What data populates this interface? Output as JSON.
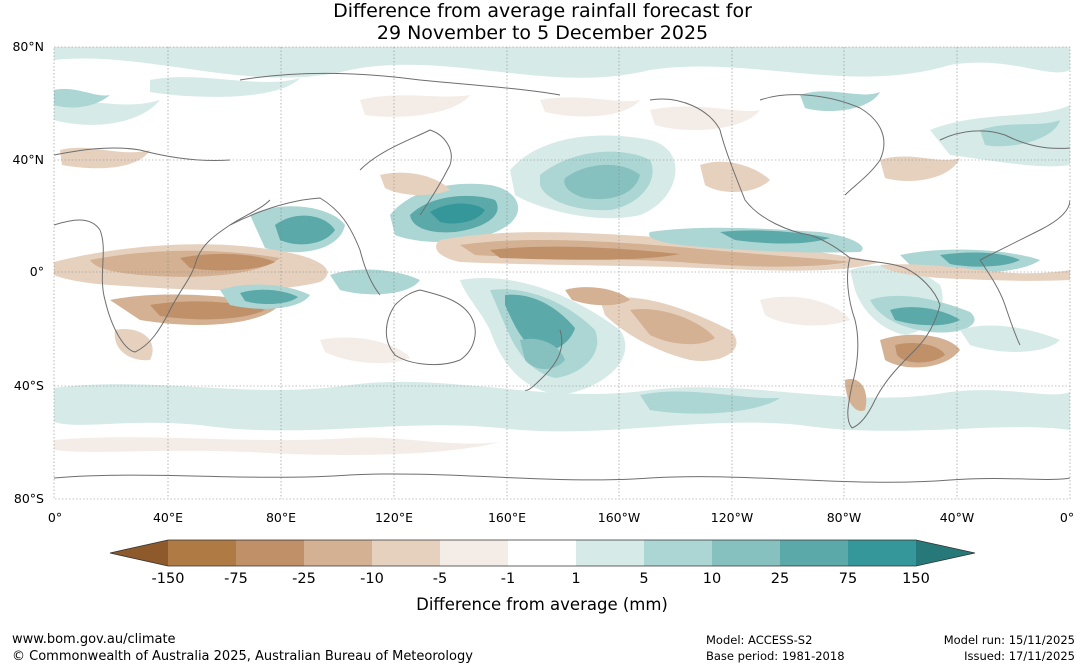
{
  "title": {
    "line1": "Difference from average rainfall forecast for",
    "line2": "29 November to 5 December 2025"
  },
  "map": {
    "lat_labels": [
      "80°N",
      "40°N",
      "0°",
      "40°S",
      "80°S"
    ],
    "lon_labels": [
      "0°",
      "40°E",
      "80°E",
      "120°E",
      "160°E",
      "160°W",
      "120°W",
      "80°W",
      "40°W",
      "0°"
    ]
  },
  "legend": {
    "colors": [
      "#8f5a2b",
      "#b07a44",
      "#c09069",
      "#d3b192",
      "#e6d1bf",
      "#f4ece6",
      "#ffffff",
      "#d6eae8",
      "#abd6d4",
      "#86c0bf",
      "#5ba9a9",
      "#35979a",
      "#267978"
    ],
    "tick_labels": [
      "-150",
      "-75",
      "-25",
      "-10",
      "-5",
      "-1",
      "1",
      "5",
      "10",
      "25",
      "75",
      "150"
    ],
    "label": "Difference from average (mm)"
  },
  "footer": {
    "url": "www.bom.gov.au/climate",
    "copyright": "© Commonwealth of Australia 2025, Australian Bureau of Meteorology",
    "model": "Model: ACCESS-S2",
    "base_period": "Base period: 1981-2018",
    "model_run": "Model run: 15/11/2025",
    "issued": "Issued: 17/11/2025"
  }
}
